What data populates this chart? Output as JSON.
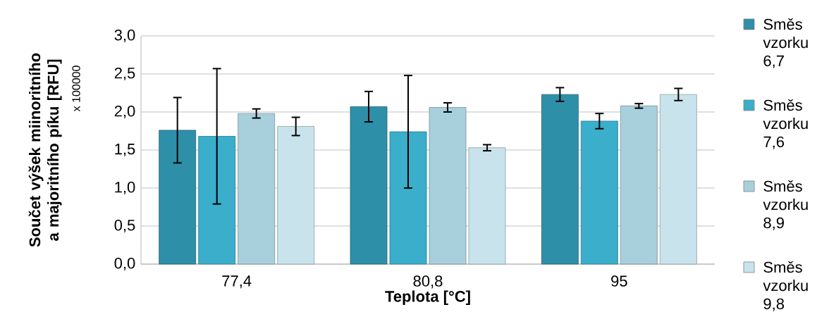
{
  "chart_data": {
    "type": "bar",
    "xlabel": "Teplota [°C]",
    "ylabel": "Součet výšek  miinoritního a majoritního píku [RFU]",
    "annotations": [
      "x 100000"
    ],
    "categories": [
      "77,4",
      "80,8",
      "95"
    ],
    "series": [
      {
        "name": "Směs vzorku 6,7",
        "color": "#2e8fa8",
        "values": [
          1.76,
          2.07,
          2.23
        ],
        "errors": [
          0.43,
          0.2,
          0.09
        ]
      },
      {
        "name": "Směs vzorku 7,6",
        "color": "#3aaecb",
        "values": [
          1.68,
          1.74,
          1.88
        ],
        "errors": [
          0.89,
          0.74,
          0.1
        ]
      },
      {
        "name": "Směs vzorku 8,9",
        "color": "#a8cfdc",
        "values": [
          1.98,
          2.06,
          2.08
        ],
        "errors": [
          0.06,
          0.06,
          0.03
        ]
      },
      {
        "name": "Směs vzorku 9,8",
        "color": "#c9e3ec",
        "values": [
          1.81,
          1.53,
          2.23
        ],
        "errors": [
          0.12,
          0.04,
          0.08
        ]
      }
    ],
    "ylim": [
      0,
      3
    ],
    "yticks": [
      {
        "value": 0,
        "label": "0,0"
      },
      {
        "value": 0.5,
        "label": "0,5"
      },
      {
        "value": 1,
        "label": "1,0"
      },
      {
        "value": 1.5,
        "label": "1,5"
      },
      {
        "value": 2,
        "label": "2,0"
      },
      {
        "value": 2.5,
        "label": "2,5"
      },
      {
        "value": 3,
        "label": "3,0"
      }
    ],
    "grid": "y",
    "legend": "right"
  }
}
